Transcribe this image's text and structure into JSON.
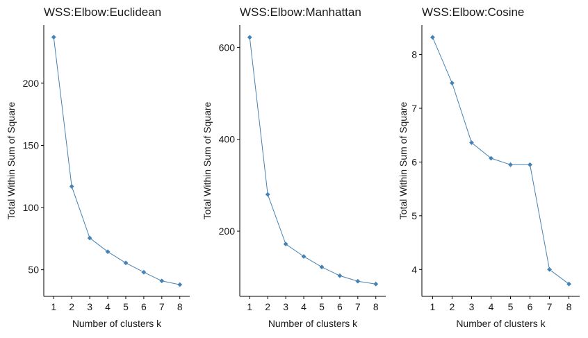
{
  "chart_data": [
    {
      "type": "line",
      "title": "WSS:Elbow:Euclidean",
      "xlabel": "Number of clusters k",
      "ylabel": "Total Within Sum of Square",
      "x": [
        1,
        2,
        3,
        4,
        5,
        6,
        7,
        8
      ],
      "y": [
        237,
        117,
        75.5,
        64.5,
        55.5,
        48,
        41,
        38
      ],
      "xlim": [
        0.45,
        8.55
      ],
      "ylim": [
        28.6,
        246.8
      ],
      "xticks": [
        1,
        2,
        3,
        4,
        5,
        6,
        7,
        8
      ],
      "yticks": [
        50,
        100,
        150,
        200
      ],
      "grid": false,
      "color": "#4682B4"
    },
    {
      "type": "line",
      "title": "WSS:Elbow:Manhattan",
      "xlabel": "Number of clusters k",
      "ylabel": "Total Within Sum of Square",
      "x": [
        1,
        2,
        3,
        4,
        5,
        6,
        7,
        8
      ],
      "y": [
        622,
        280,
        172,
        145,
        122,
        103,
        91,
        85
      ],
      "xlim": [
        0.45,
        8.55
      ],
      "ylim": [
        58.1,
        648.9
      ],
      "xticks": [
        1,
        2,
        3,
        4,
        5,
        6,
        7,
        8
      ],
      "yticks": [
        200,
        400,
        600
      ],
      "grid": false,
      "color": "#4682B4"
    },
    {
      "type": "line",
      "title": "WSS:Elbow:Cosine",
      "xlabel": "Number of clusters k",
      "ylabel": "Total Within Sum of Square",
      "x": [
        1,
        2,
        3,
        4,
        5,
        6,
        7,
        8
      ],
      "y": [
        8.32,
        7.47,
        6.36,
        6.07,
        5.95,
        5.95,
        4.0,
        3.73
      ],
      "xlim": [
        0.45,
        8.55
      ],
      "ylim": [
        3.5,
        8.55
      ],
      "xticks": [
        1,
        2,
        3,
        4,
        5,
        6,
        7,
        8
      ],
      "yticks": [
        4,
        5,
        6,
        7,
        8
      ],
      "grid": false,
      "color": "#4682B4"
    }
  ]
}
